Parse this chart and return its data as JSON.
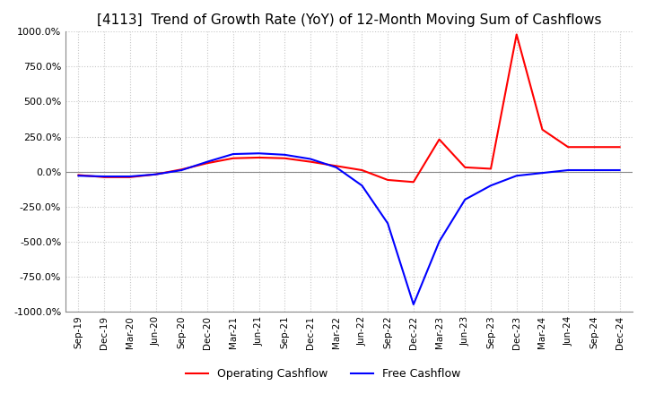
{
  "title": "[4113]  Trend of Growth Rate (YoY) of 12-Month Moving Sum of Cashflows",
  "title_fontsize": 11,
  "ylim": [
    -1000,
    1000
  ],
  "yticks": [
    1000,
    750,
    500,
    250,
    0,
    -250,
    -500,
    -750,
    -1000
  ],
  "ytick_labels": [
    "1000.0%",
    "750.0%",
    "500.0%",
    "250.0%",
    "0.0%",
    "-250.0%",
    "-500.0%",
    "-750.0%",
    "-1000.0%"
  ],
  "background_color": "#ffffff",
  "grid_color": "#c8c8c8",
  "operating_color": "#ff0000",
  "free_color": "#0000ff",
  "legend_labels": [
    "Operating Cashflow",
    "Free Cashflow"
  ],
  "x_labels": [
    "Sep-19",
    "Dec-19",
    "Mar-20",
    "Jun-20",
    "Sep-20",
    "Dec-20",
    "Mar-21",
    "Jun-21",
    "Sep-21",
    "Dec-21",
    "Mar-22",
    "Jun-22",
    "Sep-22",
    "Dec-22",
    "Mar-23",
    "Jun-23",
    "Sep-23",
    "Dec-23",
    "Mar-24",
    "Jun-24",
    "Sep-24",
    "Dec-24"
  ],
  "operating_cashflow": [
    -25,
    -40,
    -40,
    -20,
    15,
    60,
    95,
    100,
    95,
    70,
    40,
    10,
    -60,
    -75,
    230,
    30,
    20,
    980,
    300,
    175,
    175,
    175
  ],
  "free_cashflow": [
    -30,
    -35,
    -35,
    -20,
    10,
    70,
    125,
    130,
    120,
    90,
    30,
    -100,
    -370,
    -950,
    -500,
    -200,
    -100,
    -30,
    -10,
    10,
    10,
    10
  ]
}
